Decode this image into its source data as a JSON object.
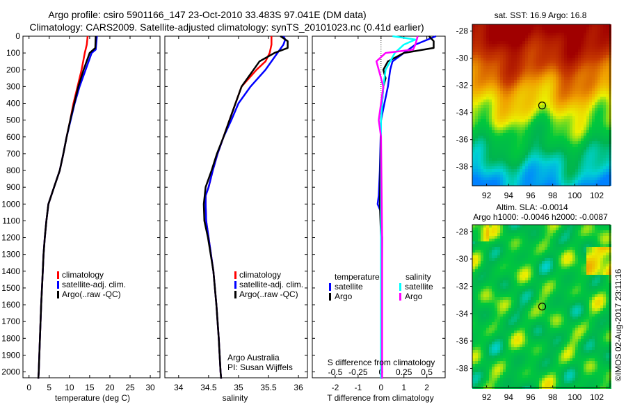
{
  "title_line1": "Argo profile: csiro 5901166_147 23-Oct-2010 33.483S 97.041E (DM data)",
  "title_line2": "Climatology: CARS2009. Satellite-adjusted climatology: synTS_20101023.nc (0.41d earlier)",
  "colors": {
    "climatology": "#ff0000",
    "satellite": "#0000ff",
    "argo": "#000000",
    "sal_satellite": "#00ffff",
    "sal_argo": "#ff00ff"
  },
  "chart_data": [
    {
      "type": "line",
      "name": "temperature",
      "xlabel": "temperature (deg C)",
      "ylabel": "",
      "xlim": [
        -1.5,
        32.4
      ],
      "ylim": [
        2035,
        0
      ],
      "xticks": [
        0,
        5,
        10,
        15,
        20,
        25,
        30
      ],
      "yticks": [
        0,
        100,
        200,
        300,
        400,
        500,
        600,
        700,
        800,
        900,
        1000,
        1100,
        1200,
        1300,
        1400,
        1500,
        1600,
        1700,
        1800,
        1900,
        2000
      ],
      "legend": [
        "climatology",
        "satellite-adj. clim.",
        "Argo(..raw -QC)"
      ],
      "series": [
        {
          "name": "climatology",
          "color": "#ff0000",
          "depth": [
            0,
            50,
            100,
            200,
            300,
            400,
            500,
            600,
            700,
            800,
            900,
            1000,
            1100,
            1200,
            1300,
            1400,
            1600,
            1800,
            2000,
            2040
          ],
          "values": [
            14.5,
            14.3,
            13.8,
            13,
            12,
            11,
            10.2,
            9.3,
            8.5,
            7.6,
            6.2,
            4.8,
            4.3,
            3.9,
            3.6,
            3.4,
            3.0,
            2.7,
            2.4,
            2.3
          ]
        },
        {
          "name": "satellite-adj. clim.",
          "color": "#0000ff",
          "depth": [
            0,
            80,
            100,
            200,
            300,
            400,
            500,
            600,
            700,
            800,
            900,
            1000,
            1100,
            1200,
            1300,
            1400,
            1600,
            1800,
            2000,
            2040
          ],
          "values": [
            16.8,
            16.5,
            15.5,
            14,
            12.5,
            11.3,
            10.3,
            9.3,
            8.5,
            7.6,
            6.2,
            4.8,
            4.3,
            3.9,
            3.6,
            3.4,
            3.0,
            2.7,
            2.4,
            2.3
          ]
        },
        {
          "name": "Argo(..raw -QC)",
          "color": "#000000",
          "depth": [
            0,
            70,
            100,
            200,
            300,
            400,
            500,
            600,
            700,
            800,
            900,
            1000,
            1100,
            1200,
            1300,
            1400,
            1600,
            1800,
            2000,
            2040
          ],
          "values": [
            16.5,
            16.4,
            15.0,
            13.5,
            12.2,
            11.2,
            10.2,
            9.3,
            8.5,
            7.6,
            6.2,
            4.8,
            4.3,
            3.9,
            3.6,
            3.4,
            3.0,
            2.7,
            2.4,
            2.3
          ]
        }
      ]
    },
    {
      "type": "line",
      "name": "salinity",
      "xlabel": "salinity",
      "xlim": [
        33.77,
        36.15
      ],
      "ylim": [
        2035,
        0
      ],
      "xticks": [
        34,
        34.5,
        35,
        35.5,
        36
      ],
      "legend": [
        "climatology",
        "satellite-adj. clim.",
        "Argo(..raw -QC)"
      ],
      "annotation": [
        "Argo Australia",
        "PI: Susan Wijffels"
      ],
      "series": [
        {
          "name": "climatology",
          "color": "#ff0000",
          "depth": [
            0,
            50,
            100,
            150,
            200,
            300,
            400,
            500,
            600,
            700,
            800,
            900,
            950,
            1000,
            1100,
            1200,
            1400,
            1600,
            1800,
            2000,
            2040
          ],
          "values": [
            35.55,
            35.55,
            35.52,
            35.45,
            35.3,
            35.05,
            34.95,
            34.85,
            34.75,
            34.65,
            34.57,
            34.5,
            34.45,
            34.45,
            34.46,
            34.5,
            34.58,
            34.63,
            34.67,
            34.7,
            34.71
          ]
        },
        {
          "name": "satellite-adj. clim.",
          "color": "#0000ff",
          "depth": [
            0,
            20,
            50,
            100,
            200,
            300,
            400,
            500,
            600,
            700,
            800,
            900,
            950,
            1000,
            1100,
            1200,
            1400,
            1600,
            1800,
            2000,
            2040
          ],
          "values": [
            35.75,
            35.78,
            35.75,
            35.65,
            35.45,
            35.2,
            35.0,
            34.88,
            34.75,
            34.65,
            34.57,
            34.5,
            34.45,
            34.45,
            34.46,
            34.5,
            34.58,
            34.63,
            34.67,
            34.7,
            34.71
          ]
        },
        {
          "name": "Argo(..raw -QC)",
          "color": "#000000",
          "depth": [
            0,
            30,
            70,
            100,
            150,
            200,
            300,
            400,
            500,
            600,
            700,
            800,
            900,
            1000,
            1100,
            1200,
            1400,
            1600,
            1800,
            2000,
            2040
          ],
          "values": [
            35.7,
            35.82,
            35.82,
            35.6,
            35.35,
            35.25,
            35.05,
            34.95,
            34.85,
            34.75,
            34.64,
            34.55,
            34.45,
            34.42,
            34.43,
            34.49,
            34.58,
            34.63,
            34.67,
            34.7,
            34.71
          ]
        }
      ]
    },
    {
      "type": "line",
      "name": "difference",
      "xlabel": "T difference from climatology",
      "x2label": "S difference from climatology",
      "xlim": [
        -3,
        2.8
      ],
      "ylim": [
        2035,
        0
      ],
      "xticks": [
        -2,
        -1,
        0,
        1,
        2
      ],
      "x2ticks": [
        "-0.5",
        "-0.25",
        "0",
        "0.25",
        "0.5"
      ],
      "legend": {
        "temperature_title": "temperature",
        "salinity_title": "salinity",
        "items": [
          "satellite",
          "Argo",
          "satellite",
          "Argo"
        ]
      },
      "series": [
        {
          "name": "temperature satellite",
          "color": "#0000ff",
          "depth": [
            0,
            50,
            100,
            150,
            200,
            300,
            400,
            500,
            800,
            950,
            1000,
            1050,
            1200,
            2040
          ],
          "values": [
            2.4,
            1.5,
            1.0,
            0.5,
            0.4,
            0.3,
            0.15,
            0,
            -0.05,
            -0.1,
            -0.15,
            0,
            0.05,
            0.02
          ]
        },
        {
          "name": "temperature Argo",
          "color": "#000000",
          "depth": [
            0,
            30,
            70,
            100,
            150,
            200,
            250,
            300,
            400,
            500,
            1000,
            1200,
            2040
          ],
          "values": [
            2.1,
            2.3,
            2.3,
            1.0,
            0.3,
            0.1,
            0.2,
            0.1,
            0.05,
            0,
            -0.05,
            0,
            0
          ]
        },
        {
          "name": "salinity satellite",
          "color": "#00ffff",
          "depth": [
            0,
            20,
            50,
            100,
            200,
            300,
            400,
            500,
            2040
          ],
          "values": [
            0.5,
            1.5,
            1.0,
            0.6,
            0.2,
            0.1,
            0.05,
            0,
            0
          ]
        },
        {
          "name": "salinity Argo",
          "color": "#ff00ff",
          "depth": [
            0,
            50,
            80,
            100,
            150,
            200,
            250,
            300,
            500,
            600,
            1200,
            2040
          ],
          "values": [
            1.6,
            1.5,
            1.4,
            0.2,
            -0.2,
            -0.1,
            0,
            0.1,
            -0.1,
            0,
            0.05,
            0.05
          ]
        }
      ]
    },
    {
      "type": "heatmap",
      "name": "sst-map",
      "title": "sat. SST: 16.9 Argo: 16.8",
      "xlim": [
        90.7,
        103.2
      ],
      "ylim": [
        -39.4,
        -27.5
      ],
      "xticks": [
        92,
        94,
        96,
        98,
        100,
        102
      ],
      "yticks": [
        -28,
        -30,
        -32,
        -34,
        -36,
        -38
      ],
      "marker": {
        "lon": 97.041,
        "lat": -33.483
      }
    },
    {
      "type": "heatmap",
      "name": "sla-map",
      "title": "Altim. SLA: -0.0014",
      "subtitle": "Argo h1000: -0.0046 h2000: -0.0087",
      "xlim": [
        90.7,
        103.2
      ],
      "ylim": [
        -39.4,
        -27.5
      ],
      "xticks": [
        92,
        94,
        96,
        98,
        100,
        102
      ],
      "yticks": [
        -28,
        -30,
        -32,
        -34,
        -36,
        -38
      ],
      "marker": {
        "lon": 97.041,
        "lat": -33.483
      }
    }
  ],
  "credit": "©IMOS 02-Aug-2017 23:11:16"
}
